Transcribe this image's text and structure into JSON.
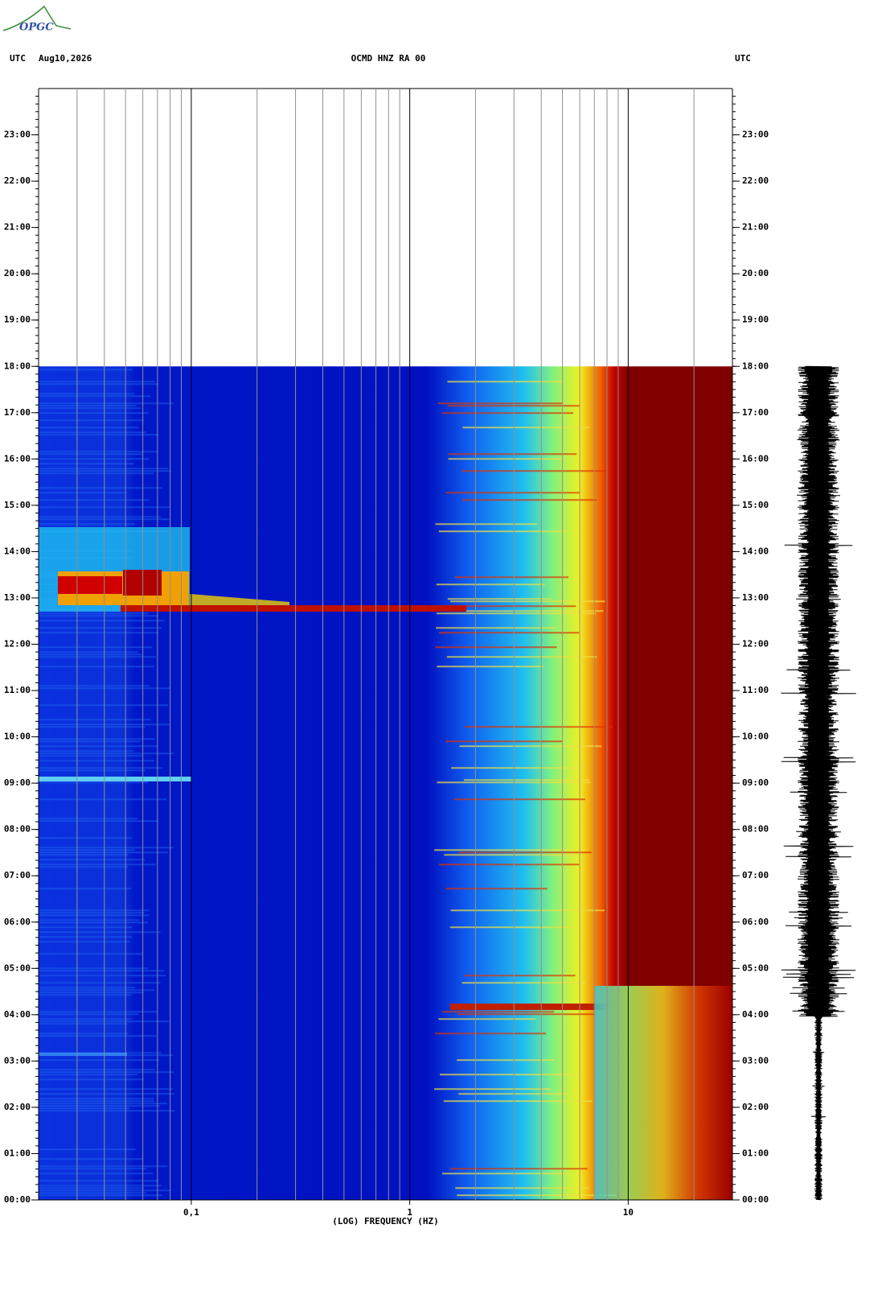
{
  "header": {
    "logo": "OPGC",
    "left_label": "UTC",
    "date": "Aug10,2026",
    "station": "OCMD HNZ RA 00",
    "right_label": "UTC"
  },
  "chart_data": {
    "type": "spectrogram",
    "x_label": "(LOG) FREQUENCY (HZ)",
    "x_scale": "log",
    "xlim": [
      0.02,
      30
    ],
    "xticks": [
      {
        "value": 0.1,
        "label": "0,1"
      },
      1,
      10
    ],
    "x_minor_ticks": [
      0.03,
      0.04,
      0.05,
      0.06,
      0.07,
      0.08,
      0.09,
      0.2,
      0.3,
      0.4,
      0.5,
      0.6,
      0.7,
      0.8,
      0.9,
      2,
      3,
      4,
      5,
      6,
      7,
      8,
      9,
      20
    ],
    "ylim": [
      0,
      24
    ],
    "data_ylim": [
      0,
      18
    ],
    "yticks": [
      {
        "value": 0,
        "label": "00:00"
      },
      {
        "value": 1,
        "label": "01:00"
      },
      {
        "value": 2,
        "label": "02:00"
      },
      {
        "value": 3,
        "label": "03:00"
      },
      {
        "value": 4,
        "label": "04:00"
      },
      {
        "value": 5,
        "label": "05:00"
      },
      {
        "value": 6,
        "label": "06:00"
      },
      {
        "value": 7,
        "label": "07:00"
      },
      {
        "value": 8,
        "label": "08:00"
      },
      {
        "value": 9,
        "label": "09:00"
      },
      {
        "value": 10,
        "label": "10:00"
      },
      {
        "value": 11,
        "label": "11:00"
      },
      {
        "value": 12,
        "label": "12:00"
      },
      {
        "value": 13,
        "label": "13:00"
      },
      {
        "value": 14,
        "label": "14:00"
      },
      {
        "value": 15,
        "label": "15:00"
      },
      {
        "value": 16,
        "label": "16:00"
      },
      {
        "value": 17,
        "label": "17:00"
      },
      {
        "value": 18,
        "label": "18:00"
      },
      {
        "value": 19,
        "label": "19:00"
      },
      {
        "value": 20,
        "label": "20:00"
      },
      {
        "value": 21,
        "label": "21:00"
      },
      {
        "value": 22,
        "label": "22:00"
      },
      {
        "value": 23,
        "label": "23:00"
      }
    ]
  }
}
